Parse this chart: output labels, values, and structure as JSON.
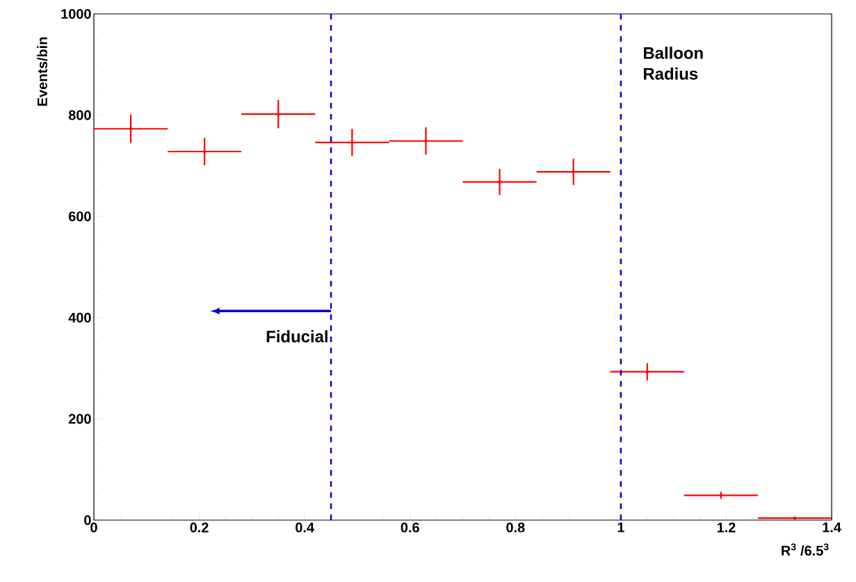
{
  "chart_data": {
    "type": "scatter",
    "xlabel": "R$^{3}$ /6.5$^{3}$",
    "ylabel": "Events/bin",
    "x": [
      0.07,
      0.21,
      0.35,
      0.49,
      0.63,
      0.77,
      0.91,
      1.05,
      1.19,
      1.33
    ],
    "series": [
      {
        "color": "#ff0000",
        "values": [
          773,
          728,
          802,
          746,
          749,
          668,
          688,
          293,
          49,
          4
        ],
        "errors": [
          28,
          27,
          28,
          27,
          27,
          26,
          26,
          17,
          7,
          null
        ],
        "xerrors": [
          0.07,
          0.07,
          0.07,
          0.07,
          0.07,
          0.07,
          0.07,
          0.07,
          0.07,
          0.07
        ]
      }
    ],
    "xlim": [
      0,
      1.4
    ],
    "xticks": [
      0,
      0.2,
      0.4,
      0.6,
      0.8,
      1,
      1.2,
      1.4
    ],
    "ylim": [
      0,
      1000
    ],
    "yticks": [
      0,
      200,
      400,
      600,
      800,
      1000
    ],
    "ref_lines": [
      {
        "axis": "x",
        "value": 0.45,
        "label": "Fiducial",
        "color": "#0000cc",
        "line_style": "dashed"
      },
      {
        "axis": "x",
        "value": 1,
        "label": "Balloon Radius",
        "color": "#0000cc",
        "line_style": "dashed"
      }
    ]
  }
}
